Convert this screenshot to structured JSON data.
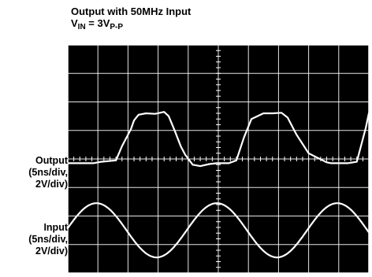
{
  "title": {
    "line1": "Output with 50MHz Input",
    "line2_prefix": "V",
    "line2_sub1": "IN",
    "line2_middle": " = 3V",
    "line2_sub2": "P-P"
  },
  "traces": {
    "output": {
      "label_line1": "Output",
      "label_line2": "(5ns/div,",
      "label_line3": "2V/div)"
    },
    "input": {
      "label_line1": "Input",
      "label_line2": "(5ns/div,",
      "label_line3": "2V/div)"
    }
  },
  "colors": {
    "screen_background": "#000000",
    "grid": "#ffffff",
    "trace": "#ffffff"
  },
  "chart_data": {
    "type": "line",
    "grid": true,
    "x_divisions": 10,
    "y_divisions": 8,
    "x_unit": "div",
    "y_unit": "div",
    "xlim": [
      0,
      10
    ],
    "ylim": [
      0,
      8
    ],
    "series": [
      {
        "name": "Output",
        "x": [
          0,
          0.1,
          0.55,
          0.85,
          1.1,
          1.6,
          1.8,
          2.1,
          2.2,
          2.35,
          2.6,
          2.9,
          3.2,
          3.35,
          3.55,
          3.75,
          3.9,
          4.15,
          4.4,
          4.7,
          4.95,
          5.35,
          5.6,
          5.85,
          6.1,
          6.5,
          6.8,
          7.1,
          7.3,
          7.6,
          8.0,
          8.6,
          8.75,
          9.1,
          9.3,
          9.6,
          9.9,
          10.0
        ],
        "y": [
          3.85,
          3.85,
          3.85,
          3.85,
          3.9,
          3.95,
          4.45,
          5.05,
          5.35,
          5.55,
          5.6,
          5.58,
          5.65,
          5.5,
          5.0,
          4.45,
          4.15,
          3.8,
          3.75,
          3.82,
          3.85,
          3.85,
          3.95,
          4.75,
          5.4,
          5.6,
          5.6,
          5.62,
          5.45,
          4.85,
          4.2,
          3.88,
          3.85,
          3.85,
          3.85,
          3.9,
          5.1,
          5.6
        ]
      },
      {
        "name": "Input",
        "period": 4.0,
        "first_peak_x": 0.95,
        "center_y": 1.5,
        "amplitude": 0.95
      }
    ]
  }
}
